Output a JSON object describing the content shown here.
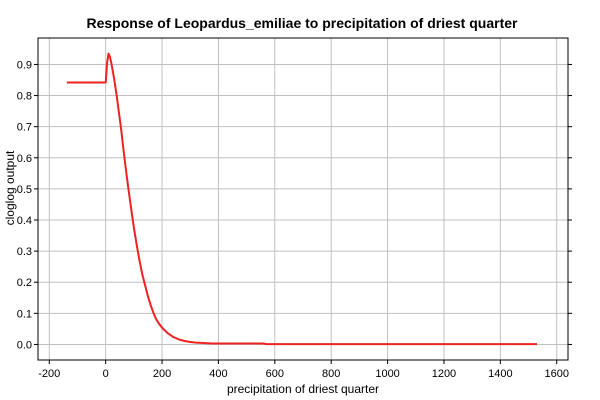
{
  "chart_data": {
    "type": "line",
    "title": "Response of Leopardus_emiliae to precipitation of driest quarter",
    "xlabel": "precipitation of driest quarter",
    "ylabel": "cloglog output",
    "xlim": [
      -240,
      1640
    ],
    "ylim": [
      -0.05,
      0.985
    ],
    "xticks": [
      -200,
      0,
      200,
      400,
      600,
      800,
      1000,
      1200,
      1400,
      1600
    ],
    "yticks": [
      0.0,
      0.1,
      0.2,
      0.3,
      0.4,
      0.5,
      0.6,
      0.7,
      0.8,
      0.9
    ],
    "xtick_labels": [
      "-200",
      "0",
      "200",
      "400",
      "600",
      "800",
      "1000",
      "1200",
      "1400",
      "1600"
    ],
    "ytick_labels": [
      "0.0",
      "0.1",
      "0.2",
      "0.3",
      "0.4",
      "0.5",
      "0.6",
      "0.7",
      "0.8",
      "0.9"
    ],
    "grid": true,
    "series": [
      {
        "color": "#ee2222",
        "x": [
          -138,
          0,
          2,
          5,
          10,
          15,
          20,
          25,
          30,
          35,
          40,
          45,
          50,
          55,
          60,
          70,
          80,
          90,
          100,
          110,
          120,
          130,
          140,
          150,
          160,
          170,
          180,
          190,
          200,
          220,
          240,
          260,
          280,
          300,
          320,
          340,
          360,
          380,
          400,
          450,
          500,
          560,
          570,
          600,
          800,
          1000,
          1200,
          1400,
          1530
        ],
        "y": [
          0.842,
          0.842,
          0.865,
          0.905,
          0.935,
          0.925,
          0.905,
          0.88,
          0.855,
          0.825,
          0.795,
          0.76,
          0.725,
          0.69,
          0.65,
          0.575,
          0.505,
          0.44,
          0.375,
          0.32,
          0.27,
          0.225,
          0.19,
          0.155,
          0.125,
          0.1,
          0.08,
          0.066,
          0.054,
          0.036,
          0.024,
          0.016,
          0.011,
          0.008,
          0.006,
          0.005,
          0.004,
          0.003,
          0.003,
          0.003,
          0.003,
          0.003,
          0.001,
          0.001,
          0.001,
          0.001,
          0.001,
          0.001,
          0.001
        ]
      }
    ]
  }
}
